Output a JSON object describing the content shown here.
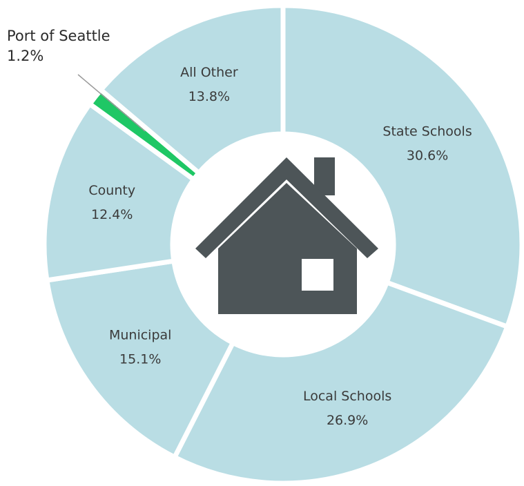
{
  "chart_data": {
    "type": "pie",
    "categories": [
      "State  Schools",
      "Local Schools",
      "Municipal",
      "County",
      "Port of Seattle",
      "All Other"
    ],
    "values": [
      30.6,
      26.9,
      15.1,
      12.4,
      1.2,
      13.8
    ],
    "value_labels": [
      "30.6%",
      "26.9%",
      "15.1%",
      "12.4%",
      "1.2%",
      "13.8%"
    ],
    "colors": [
      "#b9dde4",
      "#b9dde4",
      "#b9dde4",
      "#b9dde4",
      "#1fc765",
      "#b9dde4"
    ]
  }
}
